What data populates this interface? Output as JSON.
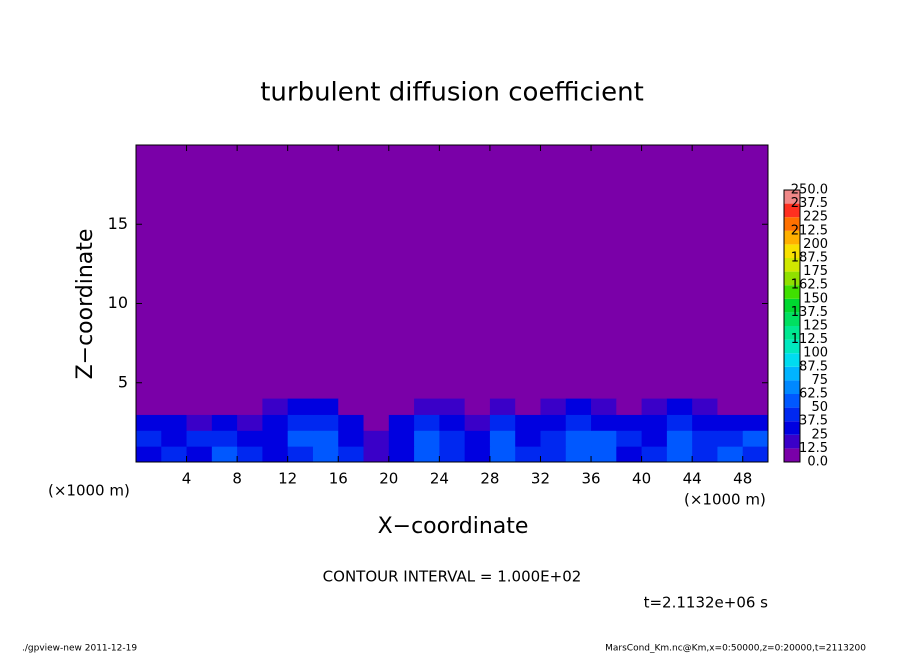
{
  "chart_data": {
    "type": "heatmap",
    "title": "turbulent diffusion coefficient",
    "xlabel": "X−coordinate",
    "ylabel": "Z−coordinate",
    "xunit_left": "(×1000 m)",
    "xunit_right": "(×1000 m)",
    "contour_interval": "CONTOUR INTERVAL = 1.000E+02",
    "time_label": "t=2.1132e+06 s",
    "footer_left": "./gpview-new   2011-12-19",
    "footer_right": "MarsCond_Km.nc@Km,x=0:50000,z=0:20000,t=2113200",
    "xlim": [
      0,
      50
    ],
    "xticks": [
      4,
      8,
      12,
      16,
      20,
      24,
      28,
      32,
      36,
      40,
      44,
      48
    ],
    "ylim": [
      0,
      20
    ],
    "yticks": [
      5,
      10,
      15
    ],
    "x": [
      1,
      3,
      5,
      7,
      9,
      11,
      13,
      15,
      17,
      19,
      21,
      23,
      25,
      27,
      29,
      31,
      33,
      35,
      37,
      39,
      41,
      43,
      45,
      47,
      49
    ],
    "y": [
      0.5,
      1.5,
      2.5,
      3.5
    ],
    "values": [
      [
        30,
        45,
        35,
        50,
        40,
        30,
        45,
        55,
        40,
        20,
        25,
        50,
        45,
        35,
        55,
        40,
        45,
        50,
        60,
        35,
        45,
        55,
        40,
        50,
        45
      ],
      [
        40,
        35,
        45,
        40,
        35,
        30,
        50,
        50,
        35,
        15,
        30,
        55,
        40,
        30,
        50,
        35,
        45,
        55,
        50,
        40,
        35,
        50,
        45,
        40,
        50
      ],
      [
        30,
        25,
        20,
        25,
        20,
        30,
        45,
        45,
        25,
        10,
        25,
        40,
        30,
        20,
        40,
        25,
        35,
        45,
        35,
        30,
        30,
        45,
        35,
        30,
        35
      ],
      [
        0,
        0,
        0,
        0,
        5,
        15,
        35,
        25,
        0,
        0,
        10,
        20,
        15,
        5,
        15,
        5,
        20,
        30,
        15,
        10,
        15,
        30,
        15,
        10,
        5
      ]
    ],
    "levels": [
      {
        "value": 0,
        "label": "0.0"
      },
      12.5,
      25,
      37.5,
      50,
      62.5,
      75,
      87.5,
      100,
      112.5,
      125,
      137.5,
      150,
      162.5,
      175,
      187.5,
      200,
      212.5,
      225,
      237.5,
      {
        "value": 250,
        "label": "250.0"
      }
    ],
    "colors": [
      "#7a00a8",
      "#3a00c8",
      "#0000e0",
      "#0028f0",
      "#0058ff",
      "#0088ff",
      "#00b4ff",
      "#00dcf0",
      "#00e8c0",
      "#00e890",
      "#00e060",
      "#00d830",
      "#40e000",
      "#90e000",
      "#d0e800",
      "#f8e000",
      "#ffb000",
      "#ff7000",
      "#ff3020",
      "#f08888"
    ]
  }
}
